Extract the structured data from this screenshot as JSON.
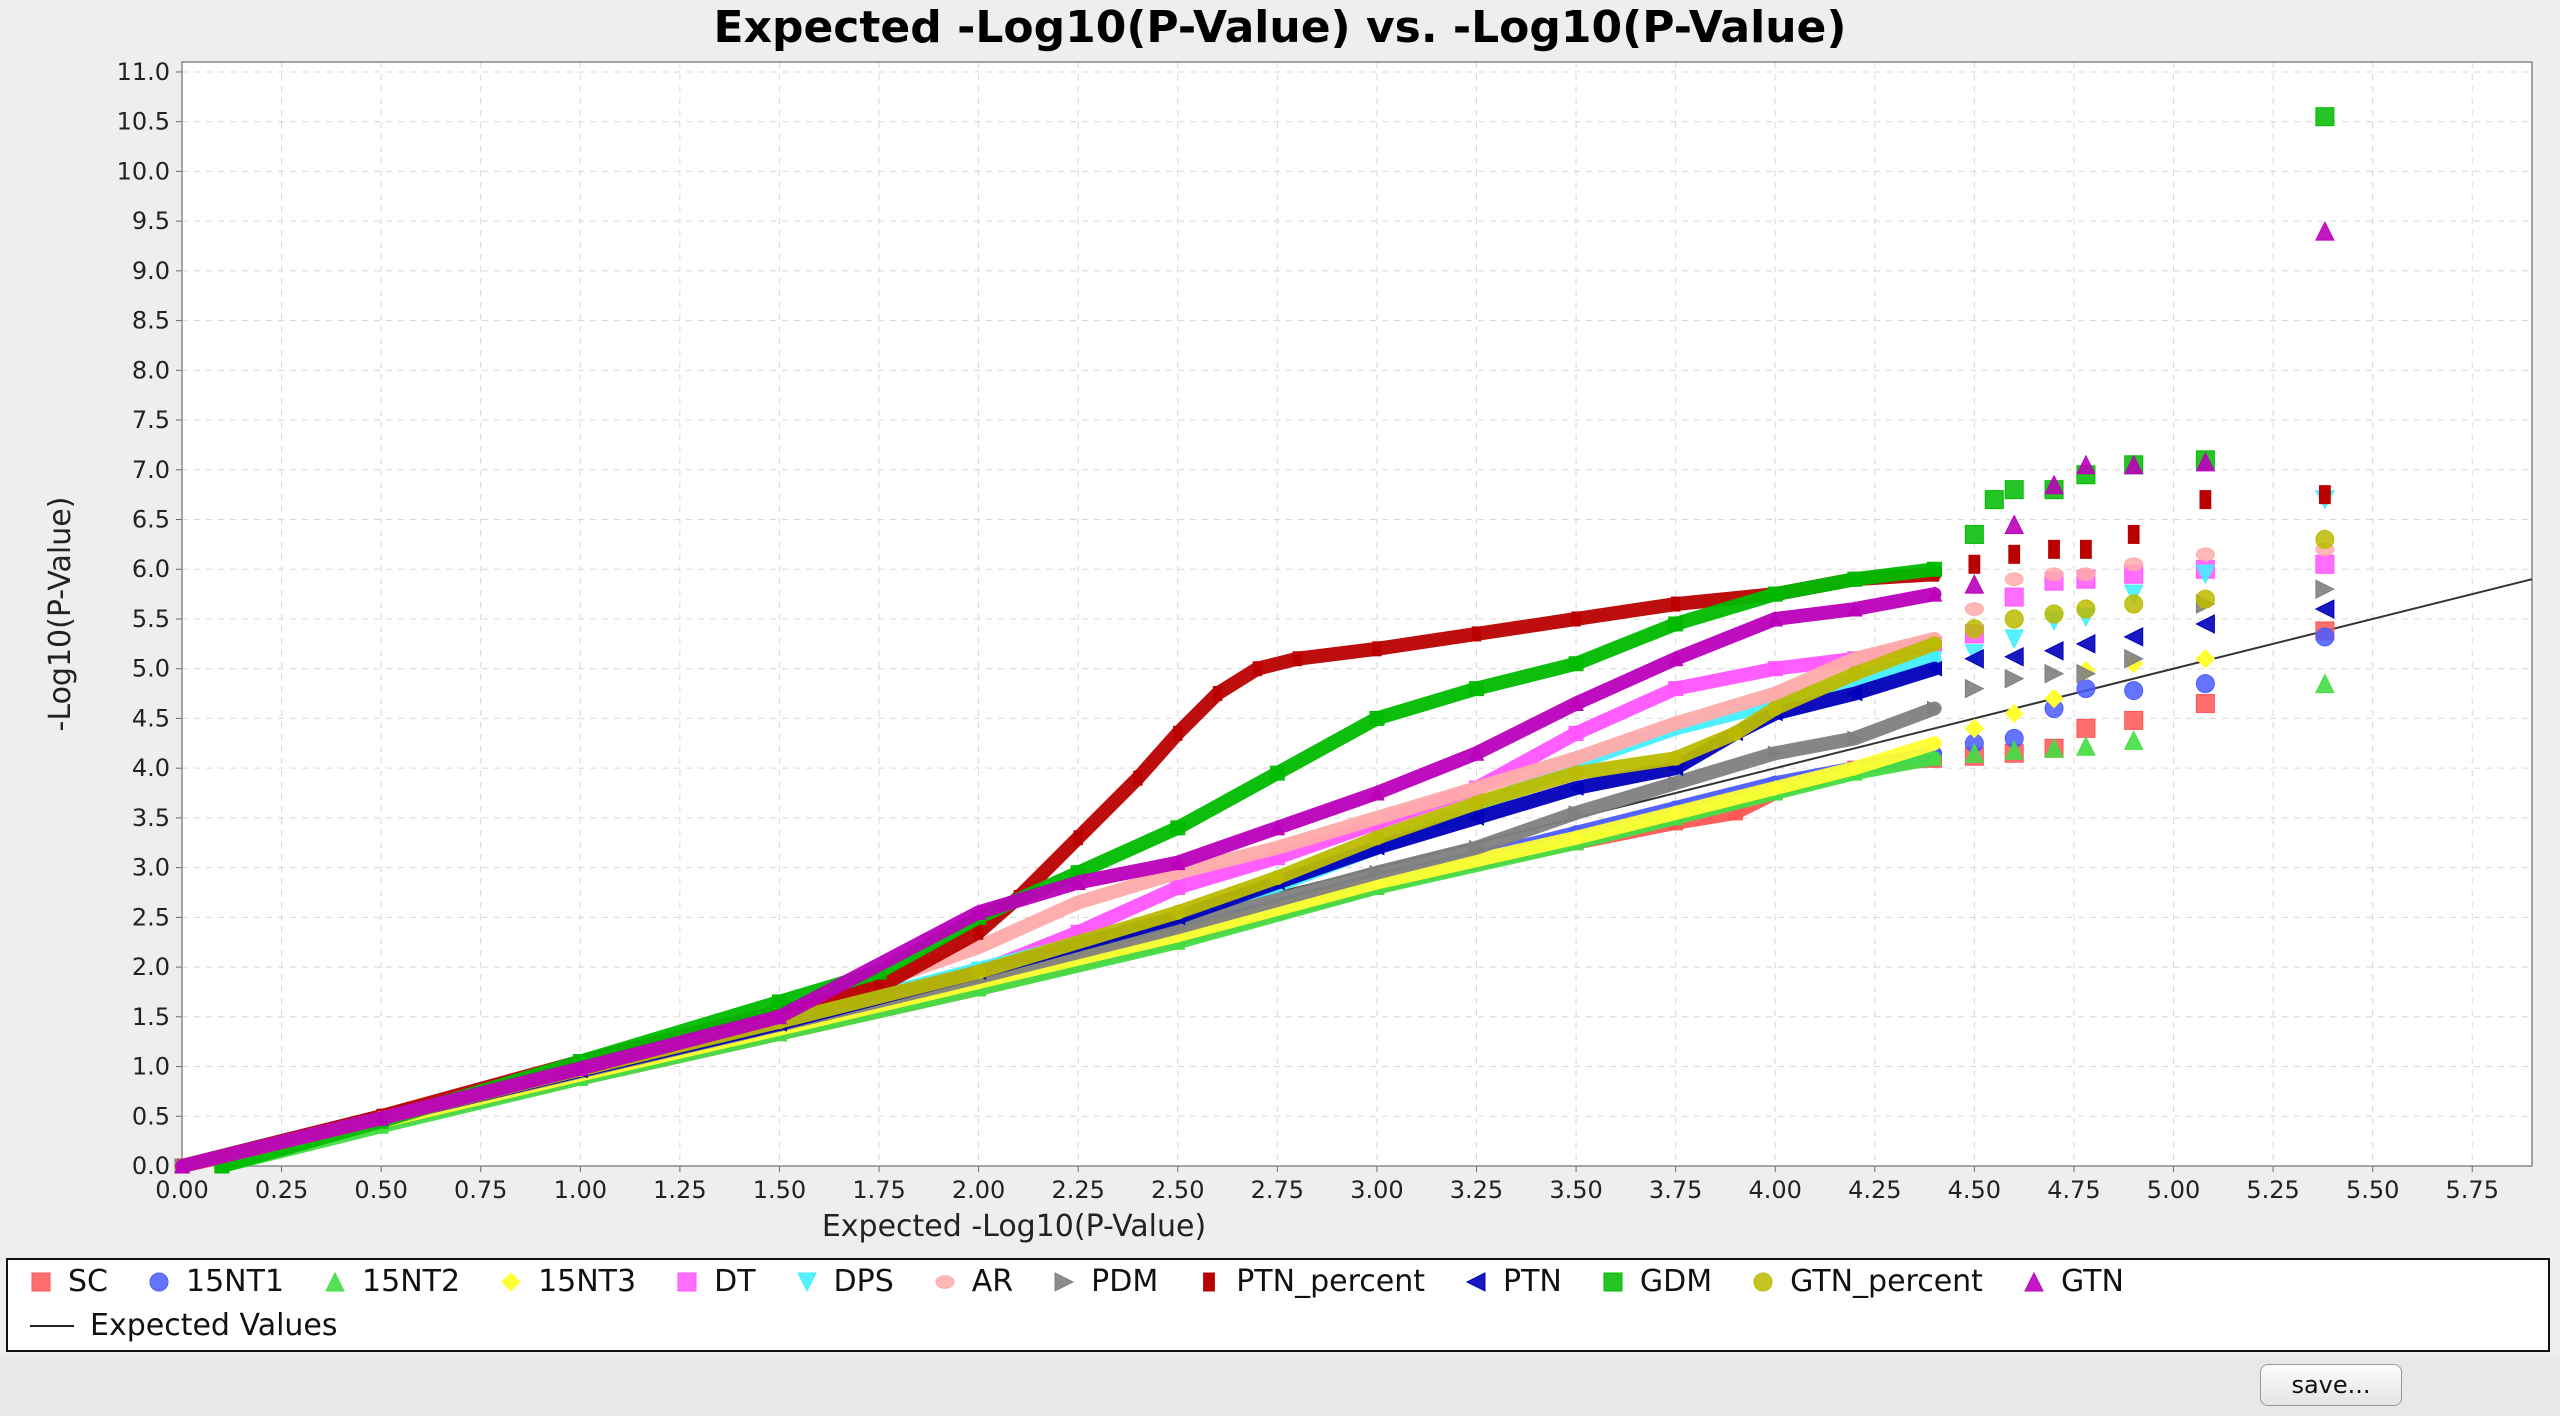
{
  "chart_data": {
    "type": "scatter",
    "title": "Expected -Log10(P-Value) vs. -Log10(P-Value)",
    "xlabel": "Expected -Log10(P-Value)",
    "ylabel": "-Log10(P-Value)",
    "xlim": [
      0,
      5.9
    ],
    "ylim": [
      0,
      11.1
    ],
    "x_ticks": [
      "0.00",
      "0.25",
      "0.50",
      "0.75",
      "1.00",
      "1.25",
      "1.50",
      "1.75",
      "2.00",
      "2.25",
      "2.50",
      "2.75",
      "3.00",
      "3.25",
      "3.50",
      "3.75",
      "4.00",
      "4.25",
      "4.50",
      "4.75",
      "5.00",
      "5.25",
      "5.50",
      "5.75"
    ],
    "y_ticks": [
      "0.0",
      "0.5",
      "1.0",
      "1.5",
      "2.0",
      "2.5",
      "3.0",
      "3.5",
      "4.0",
      "4.5",
      "5.0",
      "5.5",
      "6.0",
      "6.5",
      "7.0",
      "7.5",
      "8.0",
      "8.5",
      "9.0",
      "9.5",
      "10.0",
      "10.5",
      "11.0"
    ],
    "grid": true,
    "legend_position": "bottom",
    "expected_line": {
      "name": "Expected Values",
      "x": [
        0,
        5.9
      ],
      "y": [
        0,
        5.9
      ]
    },
    "series": [
      {
        "name": "SC",
        "color": "#ff5555",
        "marker": "square",
        "x": [
          0,
          0.5,
          1.0,
          1.5,
          2.0,
          2.5,
          2.75,
          3.0,
          3.25,
          3.5,
          3.75,
          3.9,
          4.0,
          4.1,
          4.2,
          4.3,
          4.4,
          4.5,
          4.6,
          4.7,
          4.78,
          4.9,
          5.08,
          5.38
        ],
        "y": [
          0,
          0.43,
          0.88,
          1.33,
          1.78,
          2.28,
          2.55,
          2.8,
          3.05,
          3.25,
          3.45,
          3.55,
          3.75,
          3.88,
          4.0,
          4.05,
          4.08,
          4.12,
          4.15,
          4.2,
          4.4,
          4.48,
          4.65,
          5.38
        ]
      },
      {
        "name": "15NT1",
        "color": "#4a5cff",
        "marker": "circle",
        "x": [
          0,
          0.5,
          1.0,
          1.5,
          2.0,
          2.5,
          3.0,
          3.25,
          3.5,
          3.75,
          4.0,
          4.2,
          4.4,
          4.5,
          4.6,
          4.7,
          4.78,
          4.9,
          5.08,
          5.38
        ],
        "y": [
          0,
          0.5,
          0.95,
          1.42,
          1.88,
          2.35,
          2.88,
          3.1,
          3.35,
          3.6,
          3.85,
          4.0,
          4.15,
          4.25,
          4.3,
          4.6,
          4.8,
          4.78,
          4.85,
          5.32
        ]
      },
      {
        "name": "15NT2",
        "color": "#44dd44",
        "marker": "triangle-up",
        "x": [
          0.1,
          0.5,
          1.0,
          1.5,
          2.0,
          2.5,
          3.0,
          3.5,
          3.75,
          4.0,
          4.2,
          4.4,
          4.5,
          4.6,
          4.7,
          4.78,
          4.9,
          5.38
        ],
        "y": [
          0,
          0.4,
          0.88,
          1.33,
          1.78,
          2.25,
          2.8,
          3.25,
          3.5,
          3.75,
          3.95,
          4.1,
          4.15,
          4.18,
          4.2,
          4.22,
          4.28,
          4.85
        ]
      },
      {
        "name": "15NT3",
        "color": "#ffff33",
        "marker": "diamond",
        "x": [
          0,
          0.5,
          1.0,
          1.5,
          2.0,
          2.5,
          3.0,
          3.5,
          3.75,
          4.0,
          4.2,
          4.4,
          4.5,
          4.6,
          4.7,
          4.78,
          4.9,
          5.08
        ],
        "y": [
          0,
          0.45,
          0.92,
          1.38,
          1.85,
          2.32,
          2.85,
          3.3,
          3.55,
          3.8,
          4.0,
          4.25,
          4.4,
          4.55,
          4.7,
          4.98,
          5.05,
          5.1
        ]
      },
      {
        "name": "DT",
        "color": "#ff55ff",
        "marker": "rect",
        "x": [
          0,
          0.5,
          1.0,
          1.5,
          2.0,
          2.25,
          2.5,
          2.75,
          3.0,
          3.25,
          3.5,
          3.75,
          4.0,
          4.2,
          4.4,
          4.5,
          4.6,
          4.7,
          4.78,
          4.9,
          5.08,
          5.38
        ],
        "y": [
          0,
          0.48,
          0.98,
          1.45,
          1.95,
          2.35,
          2.8,
          3.1,
          3.45,
          3.8,
          4.35,
          4.8,
          5.0,
          5.1,
          5.25,
          5.35,
          5.72,
          5.88,
          5.9,
          5.95,
          6.0,
          6.05
        ]
      },
      {
        "name": "DPS",
        "color": "#44eeff",
        "marker": "triangle-down",
        "x": [
          0,
          0.5,
          1.0,
          1.5,
          2.0,
          2.5,
          2.75,
          3.0,
          3.25,
          3.5,
          3.75,
          4.0,
          4.2,
          4.4,
          4.5,
          4.6,
          4.7,
          4.78,
          4.9,
          5.08,
          5.38
        ],
        "y": [
          0,
          0.48,
          0.98,
          1.45,
          1.98,
          2.5,
          2.82,
          3.2,
          3.6,
          4.05,
          4.4,
          4.65,
          4.9,
          5.1,
          5.15,
          5.3,
          5.48,
          5.52,
          5.75,
          5.95,
          6.7
        ]
      },
      {
        "name": "AR",
        "color": "#ffaaaa",
        "marker": "ellipse",
        "x": [
          0,
          0.5,
          1.0,
          1.5,
          2.0,
          2.25,
          2.5,
          2.75,
          3.0,
          3.25,
          3.5,
          3.75,
          4.0,
          4.2,
          4.4,
          4.5,
          4.6,
          4.7,
          4.78,
          4.9,
          5.08,
          5.38
        ],
        "y": [
          0,
          0.48,
          0.98,
          1.5,
          2.2,
          2.65,
          2.95,
          3.2,
          3.5,
          3.8,
          4.1,
          4.45,
          4.75,
          5.1,
          5.3,
          5.6,
          5.9,
          5.95,
          5.95,
          6.05,
          6.15,
          6.2
        ]
      },
      {
        "name": "PDM",
        "color": "#808080",
        "marker": "triangle-right",
        "x": [
          0,
          0.5,
          1.0,
          1.5,
          2.0,
          2.5,
          3.0,
          3.25,
          3.5,
          3.75,
          4.0,
          4.2,
          4.4,
          4.5,
          4.6,
          4.7,
          4.78,
          4.9,
          5.08,
          5.38
        ],
        "y": [
          0,
          0.48,
          0.95,
          1.42,
          1.9,
          2.4,
          2.95,
          3.2,
          3.55,
          3.85,
          4.15,
          4.3,
          4.6,
          4.8,
          4.9,
          4.95,
          4.95,
          5.1,
          5.65,
          5.8
        ]
      },
      {
        "name": "PTN_percent",
        "color": "#bb0000",
        "marker": "small-rect",
        "x": [
          0,
          0.5,
          1.0,
          1.5,
          1.75,
          2.0,
          2.1,
          2.25,
          2.4,
          2.5,
          2.6,
          2.7,
          2.8,
          3.0,
          3.25,
          3.5,
          3.75,
          4.0,
          4.2,
          4.4,
          4.5,
          4.6,
          4.7,
          4.78,
          4.9,
          5.08,
          5.38
        ],
        "y": [
          0,
          0.5,
          1.05,
          1.55,
          1.8,
          2.35,
          2.7,
          3.3,
          3.9,
          4.35,
          4.75,
          5.0,
          5.1,
          5.2,
          5.35,
          5.5,
          5.65,
          5.75,
          5.9,
          5.95,
          6.05,
          6.15,
          6.2,
          6.2,
          6.35,
          6.7,
          6.75
        ]
      },
      {
        "name": "PTN",
        "color": "#0000bb",
        "marker": "triangle-left",
        "x": [
          0,
          0.5,
          1.0,
          1.5,
          2.0,
          2.5,
          2.75,
          3.0,
          3.25,
          3.5,
          3.75,
          3.9,
          4.0,
          4.2,
          4.4,
          4.5,
          4.6,
          4.7,
          4.78,
          4.9,
          5.08,
          5.38
        ],
        "y": [
          0,
          0.48,
          0.96,
          1.43,
          1.95,
          2.5,
          2.85,
          3.2,
          3.5,
          3.8,
          4.0,
          4.35,
          4.55,
          4.75,
          5.0,
          5.1,
          5.12,
          5.18,
          5.25,
          5.32,
          5.45,
          5.6
        ]
      },
      {
        "name": "GDM",
        "color": "#00bb00",
        "marker": "square",
        "x": [
          0.1,
          0.5,
          1.0,
          1.5,
          1.75,
          2.0,
          2.25,
          2.5,
          2.75,
          3.0,
          3.25,
          3.5,
          3.75,
          4.0,
          4.2,
          4.4,
          4.5,
          4.55,
          4.6,
          4.7,
          4.78,
          4.9,
          5.08,
          5.38
        ],
        "y": [
          0,
          0.45,
          1.05,
          1.65,
          1.95,
          2.5,
          2.95,
          3.4,
          3.95,
          4.5,
          4.8,
          5.05,
          5.45,
          5.75,
          5.9,
          6.0,
          6.35,
          6.7,
          6.8,
          6.8,
          6.95,
          7.05,
          7.1,
          10.55
        ]
      },
      {
        "name": "GTN_percent",
        "color": "#bbbb00",
        "marker": "circle",
        "x": [
          0,
          0.5,
          1.0,
          1.5,
          2.0,
          2.5,
          2.75,
          3.0,
          3.25,
          3.5,
          3.75,
          3.9,
          4.0,
          4.2,
          4.4,
          4.5,
          4.6,
          4.7,
          4.78,
          4.9,
          5.08,
          5.38
        ],
        "y": [
          0,
          0.48,
          0.97,
          1.45,
          1.95,
          2.55,
          2.9,
          3.3,
          3.65,
          3.95,
          4.1,
          4.35,
          4.6,
          4.95,
          5.25,
          5.4,
          5.5,
          5.55,
          5.6,
          5.65,
          5.7,
          6.3
        ]
      },
      {
        "name": "GTN",
        "color": "#bb00bb",
        "marker": "triangle-up",
        "x": [
          0,
          0.5,
          1.0,
          1.5,
          2.0,
          2.25,
          2.5,
          2.75,
          3.0,
          3.25,
          3.5,
          3.75,
          4.0,
          4.2,
          4.4,
          4.5,
          4.6,
          4.7,
          4.78,
          4.9,
          5.08,
          5.38
        ],
        "y": [
          0,
          0.48,
          0.98,
          1.5,
          2.55,
          2.85,
          3.05,
          3.4,
          3.75,
          4.15,
          4.65,
          5.1,
          5.5,
          5.6,
          5.75,
          5.85,
          6.45,
          6.85,
          7.05,
          7.05,
          7.08,
          9.4
        ]
      }
    ]
  },
  "legend": {
    "expected_label": "Expected Values"
  },
  "controls": {
    "save_label": "save..."
  }
}
